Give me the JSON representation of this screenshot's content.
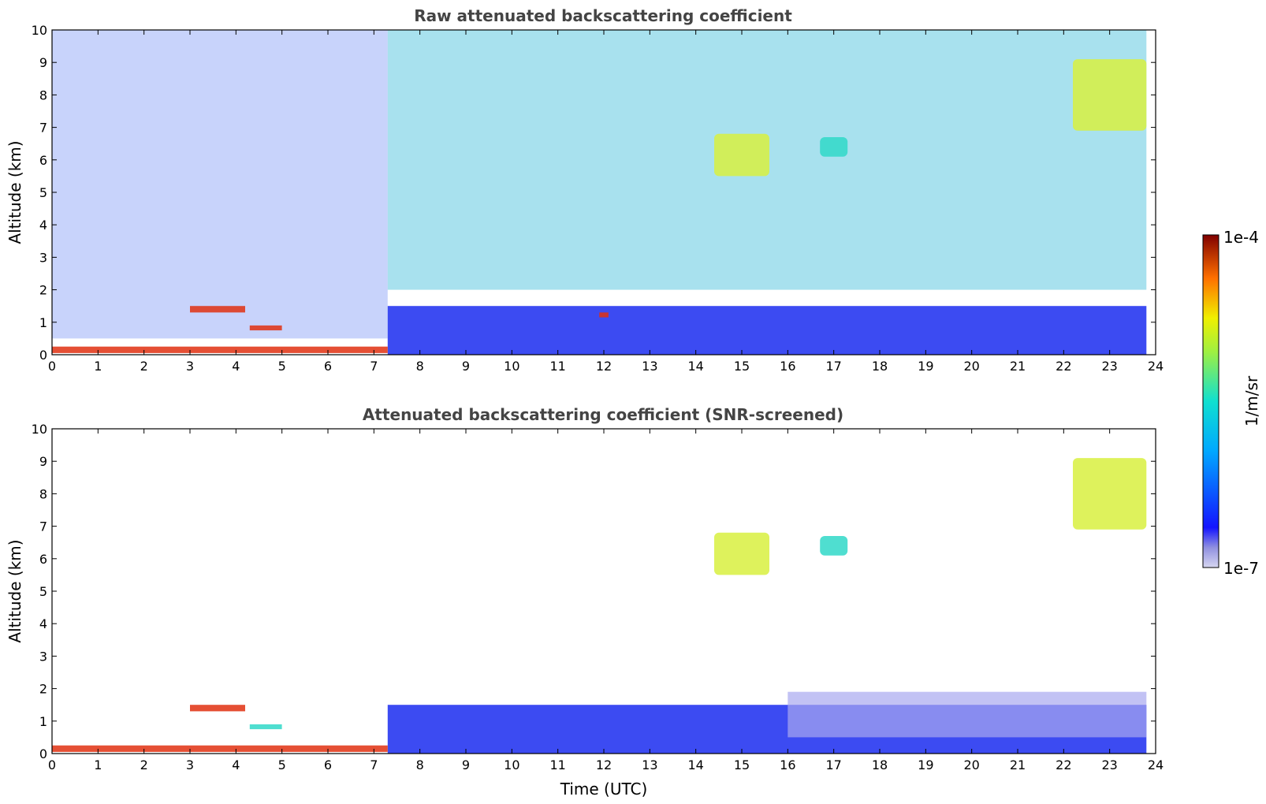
{
  "chart_data": [
    {
      "type": "heatmap",
      "title": "Raw attenuated backscattering coefficient",
      "xlabel": "",
      "ylabel": "Altitude (km)",
      "xlim": [
        0,
        24
      ],
      "ylim": [
        0,
        10
      ],
      "xticks": [
        0,
        1,
        2,
        3,
        4,
        5,
        6,
        7,
        8,
        9,
        10,
        11,
        12,
        13,
        14,
        15,
        16,
        17,
        18,
        19,
        20,
        21,
        22,
        23,
        24
      ],
      "yticks": [
        0,
        1,
        2,
        3,
        4,
        5,
        6,
        7,
        8,
        9,
        10
      ],
      "data_end_time": 23.8,
      "features": [
        {
          "kind": "noisy_background_low_signal",
          "time": [
            0,
            7.3
          ],
          "altitude": [
            0.5,
            10
          ],
          "level": "low"
        },
        {
          "kind": "noisy_background_high_signal",
          "time": [
            7.3,
            23.8
          ],
          "altitude": [
            2,
            10
          ],
          "level": "medium"
        },
        {
          "kind": "boundary_layer",
          "time": [
            7.3,
            23.8
          ],
          "altitude": [
            0,
            1.5
          ],
          "level": "medium-low"
        },
        {
          "kind": "surface_layer",
          "time": [
            0,
            7.3
          ],
          "altitude": [
            0.05,
            0.25
          ],
          "level": "high"
        },
        {
          "kind": "low_cloud",
          "time": [
            3.0,
            4.2
          ],
          "altitude": [
            1.3,
            1.5
          ],
          "level": "high"
        },
        {
          "kind": "low_cloud",
          "time": [
            4.3,
            5.0
          ],
          "altitude": [
            0.75,
            0.9
          ],
          "level": "high"
        },
        {
          "kind": "low_cloud",
          "time": [
            11.9,
            12.1
          ],
          "altitude": [
            1.15,
            1.3
          ],
          "level": "high"
        },
        {
          "kind": "cirrus",
          "time": [
            14.4,
            15.6
          ],
          "altitude": [
            5.5,
            6.8
          ],
          "level": "medium-high"
        },
        {
          "kind": "cirrus",
          "time": [
            16.7,
            17.3
          ],
          "altitude": [
            6.1,
            6.7
          ],
          "level": "medium"
        },
        {
          "kind": "cirrus",
          "time": [
            22.2,
            23.8
          ],
          "altitude": [
            6.9,
            9.1
          ],
          "level": "medium-high"
        }
      ]
    },
    {
      "type": "heatmap",
      "title": "Attenuated backscattering coefficient (SNR-screened)",
      "xlabel": "Time (UTC)",
      "ylabel": "Altitude (km)",
      "xlim": [
        0,
        24
      ],
      "ylim": [
        0,
        10
      ],
      "xticks": [
        0,
        1,
        2,
        3,
        4,
        5,
        6,
        7,
        8,
        9,
        10,
        11,
        12,
        13,
        14,
        15,
        16,
        17,
        18,
        19,
        20,
        21,
        22,
        23,
        24
      ],
      "yticks": [
        0,
        1,
        2,
        3,
        4,
        5,
        6,
        7,
        8,
        9,
        10
      ],
      "data_end_time": 23.8,
      "features": [
        {
          "kind": "boundary_layer",
          "time": [
            7.3,
            23.8
          ],
          "altitude": [
            0,
            1.5
          ],
          "level": "medium-low"
        },
        {
          "kind": "residual_layer",
          "time": [
            16.0,
            23.8
          ],
          "altitude": [
            0.5,
            1.9
          ],
          "level": "low"
        },
        {
          "kind": "surface_layer",
          "time": [
            0,
            7.3
          ],
          "altitude": [
            0.05,
            0.25
          ],
          "level": "high"
        },
        {
          "kind": "low_cloud",
          "time": [
            3.0,
            4.2
          ],
          "altitude": [
            1.3,
            1.5
          ],
          "level": "high"
        },
        {
          "kind": "low_cloud",
          "time": [
            4.3,
            5.0
          ],
          "altitude": [
            0.75,
            0.9
          ],
          "level": "medium"
        },
        {
          "kind": "cirrus",
          "time": [
            14.4,
            15.6
          ],
          "altitude": [
            5.5,
            6.8
          ],
          "level": "medium-high"
        },
        {
          "kind": "cirrus",
          "time": [
            16.7,
            17.3
          ],
          "altitude": [
            6.1,
            6.7
          ],
          "level": "medium"
        },
        {
          "kind": "cirrus",
          "time": [
            22.2,
            23.8
          ],
          "altitude": [
            6.9,
            9.1
          ],
          "level": "medium-high"
        }
      ]
    }
  ],
  "colorbar": {
    "label": "1/m/sr",
    "min_label": "1e-7",
    "max_label": "1e-4",
    "colormap": "jet",
    "colors": [
      "#d6d6f0",
      "#2020ff",
      "#00b0ff",
      "#20e0c0",
      "#e0f020",
      "#ff8000",
      "#800000"
    ]
  }
}
